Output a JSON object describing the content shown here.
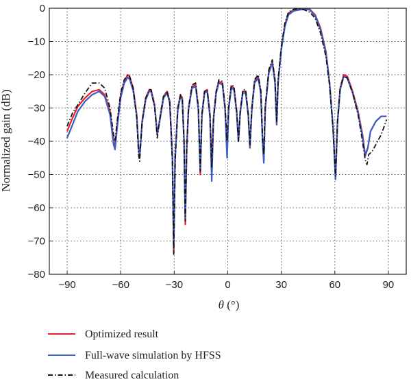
{
  "chart_data": {
    "type": "line",
    "title": "",
    "xlabel_symbol": "θ",
    "xlabel_unit": " (°)",
    "ylabel": "Normalized gain (dB)",
    "xlim": [
      -100,
      100
    ],
    "ylim": [
      -80,
      0
    ],
    "xticks": [
      -90,
      -60,
      -30,
      0,
      30,
      60,
      90
    ],
    "yticks": [
      0,
      -10,
      -20,
      -30,
      -40,
      -50,
      -60,
      -70,
      -80
    ],
    "grid": true,
    "legend_position": "bottom",
    "series": [
      {
        "name": "Optimized result",
        "color": "#e8202a",
        "style": "solid",
        "points": [
          [
            -90,
            -37
          ],
          [
            -87,
            -33
          ],
          [
            -84,
            -29.5
          ],
          [
            -80,
            -27
          ],
          [
            -76,
            -25
          ],
          [
            -72,
            -24.5
          ],
          [
            -69,
            -26
          ],
          [
            -66,
            -31
          ],
          [
            -64,
            -40
          ],
          [
            -63.2,
            -42
          ],
          [
            -62,
            -35
          ],
          [
            -60,
            -26
          ],
          [
            -58,
            -22
          ],
          [
            -56,
            -20
          ],
          [
            -55,
            -20.5
          ],
          [
            -53,
            -24
          ],
          [
            -51,
            -32
          ],
          [
            -50,
            -42
          ],
          [
            -49.4,
            -45
          ],
          [
            -48,
            -34
          ],
          [
            -46,
            -27
          ],
          [
            -44,
            -24.5
          ],
          [
            -43,
            -24.5
          ],
          [
            -41,
            -29
          ],
          [
            -39.5,
            -38
          ],
          [
            -38,
            -33
          ],
          [
            -36,
            -26.5
          ],
          [
            -34,
            -25
          ],
          [
            -32.5,
            -28
          ],
          [
            -31,
            -45
          ],
          [
            -30.3,
            -73
          ],
          [
            -29.5,
            -45
          ],
          [
            -28,
            -30
          ],
          [
            -26.5,
            -26
          ],
          [
            -25.5,
            -27
          ],
          [
            -24.5,
            -40
          ],
          [
            -23.8,
            -65
          ],
          [
            -23,
            -42
          ],
          [
            -22,
            -30
          ],
          [
            -20,
            -23.5
          ],
          [
            -18,
            -23
          ],
          [
            -16.5,
            -30
          ],
          [
            -15.4,
            -50
          ],
          [
            -14.5,
            -32
          ],
          [
            -13,
            -25
          ],
          [
            -11.5,
            -24.5
          ],
          [
            -10,
            -32
          ],
          [
            -9,
            -47
          ],
          [
            -8,
            -33
          ],
          [
            -6.5,
            -25
          ],
          [
            -5,
            -22
          ],
          [
            -3,
            -22.5
          ],
          [
            -1.5,
            -30
          ],
          [
            -0.4,
            -43
          ],
          [
            0.5,
            -30
          ],
          [
            2,
            -23.5
          ],
          [
            3.5,
            -24
          ],
          [
            5,
            -31
          ],
          [
            6,
            -40
          ],
          [
            7,
            -31
          ],
          [
            8.5,
            -25
          ],
          [
            10,
            -25
          ],
          [
            11.5,
            -32
          ],
          [
            12.4,
            -42
          ],
          [
            13.5,
            -30
          ],
          [
            15,
            -22
          ],
          [
            17,
            -20.5
          ],
          [
            18.5,
            -25
          ],
          [
            19.5,
            -40
          ],
          [
            20.2,
            -46
          ],
          [
            21,
            -30
          ],
          [
            23,
            -19
          ],
          [
            25,
            -16
          ],
          [
            26.5,
            -22
          ],
          [
            27.4,
            -35
          ],
          [
            28.2,
            -22
          ],
          [
            30,
            -12
          ],
          [
            32,
            -5
          ],
          [
            34,
            -1.5
          ],
          [
            37,
            -0.5
          ],
          [
            40,
            -0.3
          ],
          [
            43,
            -0.2
          ],
          [
            46,
            -0.3
          ],
          [
            49,
            -2
          ],
          [
            52,
            -6
          ],
          [
            55,
            -13
          ],
          [
            57,
            -22
          ],
          [
            59,
            -36
          ],
          [
            60.4,
            -51
          ],
          [
            61.5,
            -34
          ],
          [
            63,
            -24
          ],
          [
            65,
            -20
          ],
          [
            67,
            -20.5
          ],
          [
            70,
            -25
          ],
          [
            73,
            -31
          ],
          [
            75.5,
            -38
          ],
          [
            77,
            -44
          ],
          [
            78.5,
            -42
          ],
          [
            80,
            -37
          ],
          [
            83,
            -34
          ],
          [
            86,
            -32.5
          ],
          [
            89,
            -32.5
          ]
        ]
      },
      {
        "name": "Full-wave simulation by HFSS",
        "color": "#3b5fc8",
        "style": "solid",
        "points": [
          [
            -90,
            -39
          ],
          [
            -87,
            -35
          ],
          [
            -84,
            -31
          ],
          [
            -80,
            -28
          ],
          [
            -76,
            -26
          ],
          [
            -72,
            -25
          ],
          [
            -69,
            -26.5
          ],
          [
            -66,
            -32
          ],
          [
            -64,
            -41
          ],
          [
            -63.2,
            -42.5
          ],
          [
            -62,
            -36
          ],
          [
            -60,
            -27
          ],
          [
            -58,
            -22.5
          ],
          [
            -56,
            -20.8
          ],
          [
            -55,
            -21.3
          ],
          [
            -53,
            -24.8
          ],
          [
            -51,
            -32.5
          ],
          [
            -50,
            -42
          ],
          [
            -49.4,
            -45
          ],
          [
            -48,
            -34.5
          ],
          [
            -46,
            -27.5
          ],
          [
            -44,
            -25
          ],
          [
            -43,
            -25
          ],
          [
            -41,
            -29.5
          ],
          [
            -39.5,
            -38
          ],
          [
            -38,
            -33.5
          ],
          [
            -36,
            -27
          ],
          [
            -34,
            -25.5
          ],
          [
            -32.5,
            -28.5
          ],
          [
            -31,
            -45
          ],
          [
            -30.3,
            -72
          ],
          [
            -29.5,
            -45
          ],
          [
            -28,
            -30.5
          ],
          [
            -26.5,
            -26.5
          ],
          [
            -25.5,
            -27.5
          ],
          [
            -24.5,
            -40
          ],
          [
            -23.8,
            -63
          ],
          [
            -23,
            -42
          ],
          [
            -22,
            -30.5
          ],
          [
            -20,
            -24
          ],
          [
            -18,
            -23.5
          ],
          [
            -16.5,
            -30.5
          ],
          [
            -15.4,
            -49
          ],
          [
            -14.5,
            -32.5
          ],
          [
            -13,
            -25.5
          ],
          [
            -11.5,
            -25
          ],
          [
            -10,
            -32.5
          ],
          [
            -9,
            -52
          ],
          [
            -8,
            -33.5
          ],
          [
            -6.5,
            -25.5
          ],
          [
            -5,
            -22.5
          ],
          [
            -3,
            -23
          ],
          [
            -1.5,
            -30.5
          ],
          [
            -0.4,
            -45
          ],
          [
            0.5,
            -30.5
          ],
          [
            2,
            -24
          ],
          [
            3.5,
            -24.5
          ],
          [
            5,
            -31.5
          ],
          [
            6,
            -40
          ],
          [
            7,
            -31.5
          ],
          [
            8.5,
            -25.5
          ],
          [
            10,
            -25.5
          ],
          [
            11.5,
            -32.5
          ],
          [
            12.4,
            -42
          ],
          [
            13.5,
            -30.5
          ],
          [
            15,
            -22.5
          ],
          [
            17,
            -21
          ],
          [
            18.5,
            -25.5
          ],
          [
            19.5,
            -40
          ],
          [
            20.2,
            -46.5
          ],
          [
            21,
            -30.5
          ],
          [
            23,
            -19.5
          ],
          [
            25,
            -16.5
          ],
          [
            26.5,
            -22.5
          ],
          [
            27.4,
            -35
          ],
          [
            28.2,
            -22.5
          ],
          [
            30,
            -12.5
          ],
          [
            32,
            -5.5
          ],
          [
            34,
            -2
          ],
          [
            37,
            -0.8
          ],
          [
            40,
            -0.5
          ],
          [
            43,
            -0.3
          ],
          [
            46,
            -0.5
          ],
          [
            49,
            -2.3
          ],
          [
            52,
            -6.5
          ],
          [
            55,
            -13.5
          ],
          [
            57,
            -22.5
          ],
          [
            59,
            -36
          ],
          [
            60.4,
            -51.5
          ],
          [
            61.5,
            -34.5
          ],
          [
            63,
            -24.5
          ],
          [
            65,
            -20.5
          ],
          [
            67,
            -21
          ],
          [
            70,
            -25.5
          ],
          [
            73,
            -31.5
          ],
          [
            75.5,
            -38.5
          ],
          [
            77,
            -44.5
          ],
          [
            78.5,
            -42
          ],
          [
            80,
            -37
          ],
          [
            83,
            -34
          ],
          [
            86,
            -32.5
          ],
          [
            89,
            -32.5
          ]
        ]
      },
      {
        "name": "Measured calculation",
        "color": "#111111",
        "style": "dashdot",
        "points": [
          [
            -90,
            -35.5
          ],
          [
            -87,
            -31.5
          ],
          [
            -84,
            -29
          ],
          [
            -80,
            -25.5
          ],
          [
            -76,
            -22.5
          ],
          [
            -72,
            -22.5
          ],
          [
            -69,
            -24
          ],
          [
            -66,
            -30
          ],
          [
            -64,
            -38
          ],
          [
            -63.2,
            -40
          ],
          [
            -62,
            -34
          ],
          [
            -60,
            -25.5
          ],
          [
            -58,
            -21.5
          ],
          [
            -56,
            -20
          ],
          [
            -55,
            -20.5
          ],
          [
            -53,
            -24
          ],
          [
            -51,
            -33
          ],
          [
            -50,
            -44
          ],
          [
            -49.4,
            -46
          ],
          [
            -48,
            -34
          ],
          [
            -46,
            -27
          ],
          [
            -44,
            -24.5
          ],
          [
            -43,
            -24.5
          ],
          [
            -41,
            -29.5
          ],
          [
            -39.5,
            -39
          ],
          [
            -38,
            -33
          ],
          [
            -36,
            -26.5
          ],
          [
            -34,
            -25
          ],
          [
            -32.5,
            -28
          ],
          [
            -31,
            -46
          ],
          [
            -30.3,
            -74
          ],
          [
            -29.5,
            -46
          ],
          [
            -28,
            -30
          ],
          [
            -26.5,
            -26
          ],
          [
            -25.5,
            -27
          ],
          [
            -24.5,
            -41
          ],
          [
            -23.8,
            -64
          ],
          [
            -23,
            -42
          ],
          [
            -22,
            -30
          ],
          [
            -20,
            -23
          ],
          [
            -18,
            -22.5
          ],
          [
            -16.5,
            -29.5
          ],
          [
            -15.4,
            -49
          ],
          [
            -14.5,
            -32
          ],
          [
            -13,
            -25
          ],
          [
            -11.5,
            -24.5
          ],
          [
            -10,
            -32
          ],
          [
            -9,
            -48
          ],
          [
            -8,
            -33
          ],
          [
            -6.5,
            -25
          ],
          [
            -5,
            -21.5
          ],
          [
            -3,
            -22
          ],
          [
            -1.5,
            -29.5
          ],
          [
            -0.4,
            -40
          ],
          [
            0.5,
            -29.5
          ],
          [
            2,
            -23
          ],
          [
            3.5,
            -23.5
          ],
          [
            5,
            -31
          ],
          [
            6,
            -40
          ],
          [
            7,
            -31
          ],
          [
            8.5,
            -24.5
          ],
          [
            10,
            -24.5
          ],
          [
            11.5,
            -32
          ],
          [
            12.4,
            -41
          ],
          [
            13.5,
            -30
          ],
          [
            15,
            -21.5
          ],
          [
            17,
            -20
          ],
          [
            18.5,
            -24.5
          ],
          [
            19.5,
            -39
          ],
          [
            20.2,
            -44
          ],
          [
            21,
            -29.5
          ],
          [
            23,
            -18.5
          ],
          [
            25,
            -15.5
          ],
          [
            26.5,
            -21.5
          ],
          [
            27.4,
            -34
          ],
          [
            28.2,
            -21.5
          ],
          [
            30,
            -11.5
          ],
          [
            32,
            -4.5
          ],
          [
            34,
            -1.2
          ],
          [
            37,
            -0.3
          ],
          [
            40,
            -0.2
          ],
          [
            43,
            -0.5
          ],
          [
            46,
            -1.2
          ],
          [
            49,
            -3
          ],
          [
            52,
            -7.5
          ],
          [
            55,
            -14.5
          ],
          [
            57,
            -23
          ],
          [
            59,
            -36
          ],
          [
            60.4,
            -50.5
          ],
          [
            61.5,
            -34
          ],
          [
            63,
            -24
          ],
          [
            65,
            -20.5
          ],
          [
            67,
            -21
          ],
          [
            70,
            -25.5
          ],
          [
            73,
            -32
          ],
          [
            75.5,
            -40
          ],
          [
            77,
            -45.5
          ],
          [
            78,
            -47
          ],
          [
            79,
            -44
          ],
          [
            81,
            -43
          ],
          [
            83,
            -41
          ],
          [
            86,
            -38
          ],
          [
            89,
            -33.5
          ]
        ]
      }
    ]
  }
}
